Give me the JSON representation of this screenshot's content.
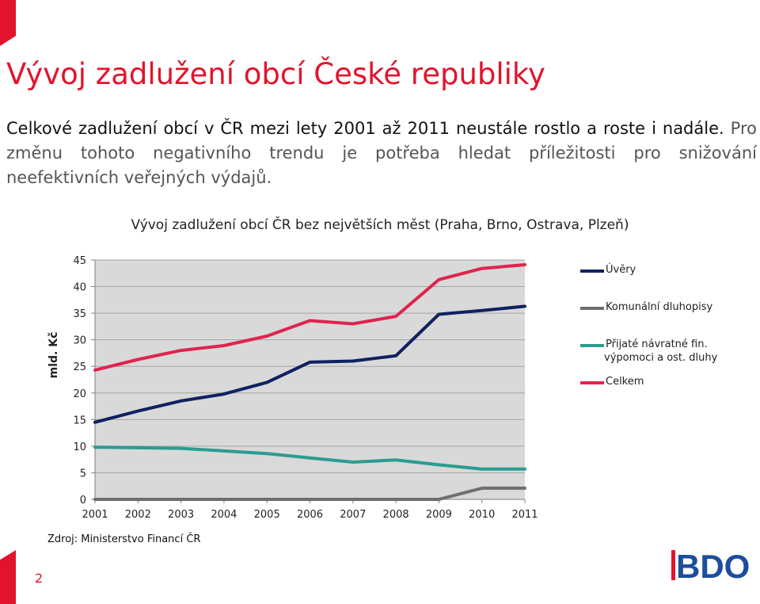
{
  "slide": {
    "title": "Vývoj zadlužení obcí České republiky",
    "intro_lead": "Celkové zadlužení obcí v ČR mezi lety 2001 až 2011 neustále rostlo a roste i nadále.",
    "intro_rest": " Pro změnu tohoto negativního trendu je potřeba hledat příležitosti pro snižování neefektivních veřejných výdajů.",
    "source": "Zdroj: Ministerstvo Financí ČR",
    "page_number": "2",
    "logo_text": "BDO",
    "colors": {
      "accent": "#e2142d",
      "logo_blue": "#1b4f9c"
    }
  },
  "chart_data": {
    "type": "line",
    "title": "Vývoj zadlužení obcí ČR bez největších měst (Praha, Brno, Ostrava, Plzeň)",
    "ylabel": "mld. Kč",
    "xlabel": "",
    "categories": [
      "2001",
      "2002",
      "2003",
      "2004",
      "2005",
      "2006",
      "2007",
      "2008",
      "2009",
      "2010",
      "2011"
    ],
    "ylim": [
      0,
      45
    ],
    "yticks": [
      "0",
      "5",
      "10",
      "15",
      "20",
      "25",
      "30",
      "35",
      "40",
      "45"
    ],
    "grid": true,
    "legend_position": "right",
    "series": [
      {
        "name": "Úvěry",
        "color": "#0f2160",
        "values": [
          14.5,
          16.6,
          18.5,
          19.8,
          22.0,
          25.8,
          26.0,
          27.0,
          34.8,
          35.5,
          36.3
        ]
      },
      {
        "name": "Komunální dluhopisy",
        "color": "#6d6e70",
        "values": [
          0,
          0,
          0,
          0,
          0,
          0,
          0,
          0,
          0,
          2.1,
          2.1
        ]
      },
      {
        "name": "Přijaté návratné fin. výpomoci a ost. dluhy",
        "name_line1": "Přijaté návratné fin.",
        "name_line2": "výpomoci a ost. dluhy",
        "color": "#2a9d8f",
        "values": [
          9.8,
          9.7,
          9.6,
          9.1,
          8.6,
          7.8,
          7.0,
          7.4,
          6.5,
          5.7,
          5.7
        ]
      },
      {
        "name": "Celkem",
        "color": "#e0234e",
        "values": [
          24.3,
          26.3,
          28.0,
          28.9,
          30.7,
          33.6,
          33.0,
          34.4,
          41.3,
          43.4,
          44.1
        ]
      }
    ]
  }
}
